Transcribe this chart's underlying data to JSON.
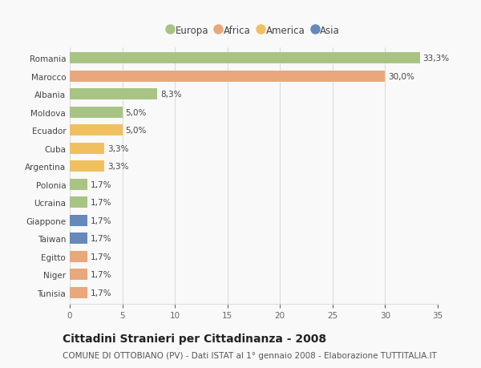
{
  "categories": [
    "Romania",
    "Marocco",
    "Albania",
    "Moldova",
    "Ecuador",
    "Cuba",
    "Argentina",
    "Polonia",
    "Ucraina",
    "Giappone",
    "Taiwan",
    "Egitto",
    "Niger",
    "Tunisia"
  ],
  "values": [
    33.3,
    30.0,
    8.3,
    5.0,
    5.0,
    3.3,
    3.3,
    1.7,
    1.7,
    1.7,
    1.7,
    1.7,
    1.7,
    1.7
  ],
  "labels": [
    "33,3%",
    "30,0%",
    "8,3%",
    "5,0%",
    "5,0%",
    "3,3%",
    "3,3%",
    "1,7%",
    "1,7%",
    "1,7%",
    "1,7%",
    "1,7%",
    "1,7%",
    "1,7%"
  ],
  "colors": [
    "#a8c484",
    "#e8a87c",
    "#a8c484",
    "#a8c484",
    "#f0c060",
    "#f0c060",
    "#f0c060",
    "#a8c484",
    "#a8c484",
    "#6688bb",
    "#6688bb",
    "#e8a87c",
    "#e8a87c",
    "#e8a87c"
  ],
  "legend_labels": [
    "Europa",
    "Africa",
    "America",
    "Asia"
  ],
  "legend_colors": [
    "#a8c484",
    "#e8a87c",
    "#f0c060",
    "#6688bb"
  ],
  "title": "Cittadini Stranieri per Cittadinanza - 2008",
  "subtitle": "COMUNE DI OTTOBIANO (PV) - Dati ISTAT al 1° gennaio 2008 - Elaborazione TUTTITALIA.IT",
  "xlim": [
    0,
    35
  ],
  "xticks": [
    0,
    5,
    10,
    15,
    20,
    25,
    30,
    35
  ],
  "background_color": "#f9f9f9",
  "bar_height": 0.62,
  "grid_color": "#dddddd",
  "title_fontsize": 10,
  "subtitle_fontsize": 7.5,
  "label_fontsize": 7.5,
  "tick_fontsize": 7.5
}
